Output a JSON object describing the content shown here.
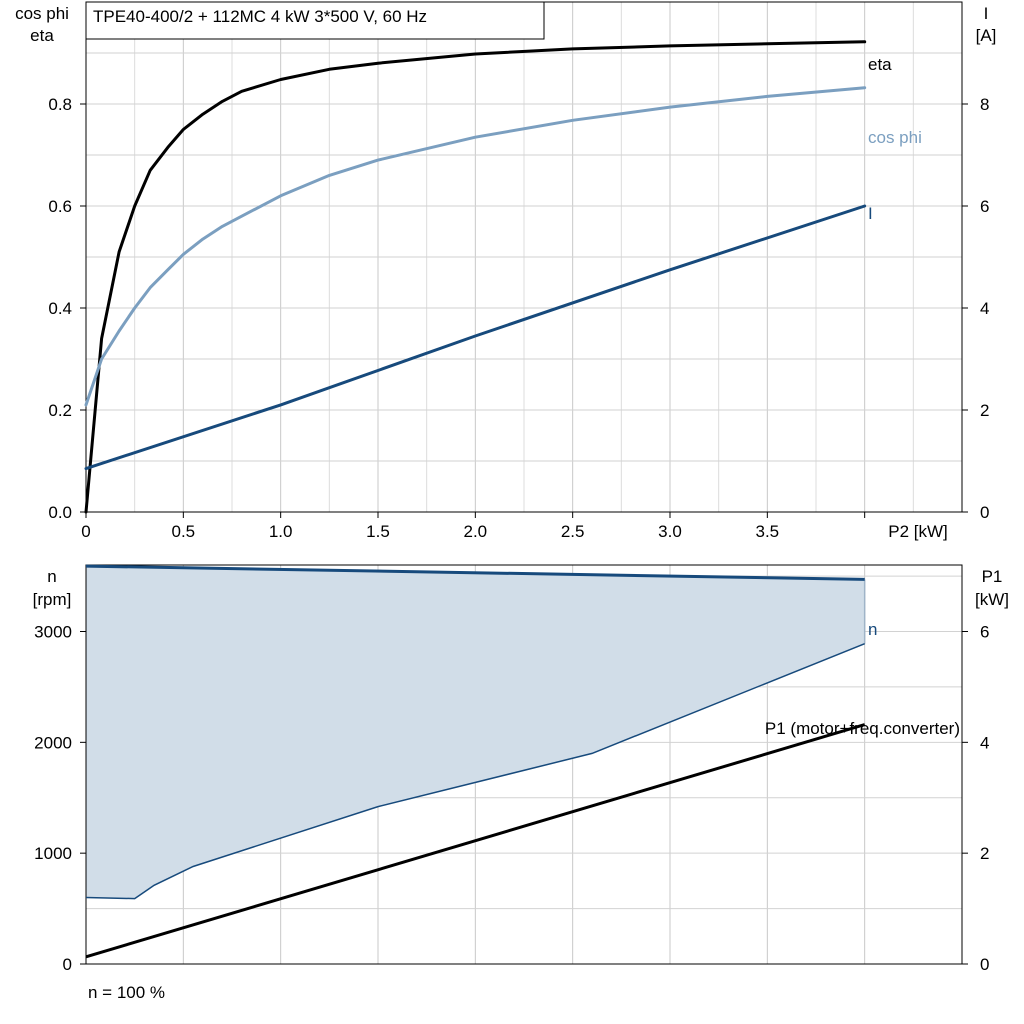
{
  "chart_data": [
    {
      "type": "line",
      "title": "TPE40-400/2 + 112MC   4 kW   3*500 V, 60 Hz",
      "xlabel": "P2 [kW]",
      "ylabel_left": [
        "cos phi",
        "eta"
      ],
      "ylabel_right": [
        "I",
        "[A]"
      ],
      "xlim": [
        0,
        4.5
      ],
      "ylim_left": [
        0,
        1.0
      ],
      "ylim_right": [
        0,
        10
      ],
      "x_ticks": [
        "0",
        "0.5",
        "1.0",
        "1.5",
        "2.0",
        "2.5",
        "3.0",
        "3.5"
      ],
      "y_ticks_left": [
        "0.0",
        "0.2",
        "0.4",
        "0.6",
        "0.8"
      ],
      "y_ticks_right": [
        "0",
        "2",
        "4",
        "6",
        "8"
      ],
      "grid": true,
      "series": [
        {
          "name": "eta",
          "axis": "left",
          "color": "#000000",
          "x": [
            0,
            0.08,
            0.17,
            0.25,
            0.33,
            0.42,
            0.5,
            0.6,
            0.7,
            0.8,
            1.0,
            1.25,
            1.5,
            2.0,
            2.5,
            3.0,
            3.5,
            4.0
          ],
          "y": [
            0,
            0.34,
            0.51,
            0.6,
            0.67,
            0.715,
            0.75,
            0.78,
            0.805,
            0.825,
            0.848,
            0.868,
            0.88,
            0.898,
            0.908,
            0.914,
            0.918,
            0.922
          ]
        },
        {
          "name": "cos phi",
          "axis": "left",
          "color": "#7b9fc0",
          "x": [
            0,
            0.08,
            0.17,
            0.25,
            0.33,
            0.42,
            0.5,
            0.6,
            0.7,
            0.8,
            1.0,
            1.25,
            1.5,
            2.0,
            2.5,
            3.0,
            3.5,
            4.0
          ],
          "y": [
            0.21,
            0.3,
            0.355,
            0.4,
            0.44,
            0.475,
            0.505,
            0.535,
            0.56,
            0.58,
            0.62,
            0.66,
            0.69,
            0.735,
            0.768,
            0.794,
            0.815,
            0.832
          ]
        },
        {
          "name": "I",
          "axis": "right",
          "color": "#174a7c",
          "x": [
            0,
            1.0,
            2.0,
            3.0,
            4.0
          ],
          "y": [
            0.85,
            2.1,
            3.45,
            4.75,
            6.0
          ]
        }
      ]
    },
    {
      "type": "area",
      "xlim": [
        0,
        4.5
      ],
      "ylabel_left": [
        "n",
        "[rpm]"
      ],
      "ylabel_right": [
        "P1",
        "[kW]"
      ],
      "ylim_left": [
        0,
        3600
      ],
      "ylim_right": [
        0,
        7.2
      ],
      "y_ticks_left": [
        "0",
        "1000",
        "2000",
        "3000"
      ],
      "y_ticks_right": [
        "0",
        "2",
        "4",
        "6"
      ],
      "grid": true,
      "footnote": "n = 100 %",
      "series": [
        {
          "name": "n",
          "axis": "left",
          "color": "#174a7c",
          "x": [
            0,
            4.0
          ],
          "y": [
            3590,
            3470
          ]
        },
        {
          "name": "",
          "role": "operating range lower limit",
          "axis": "left",
          "color": "#174a7c",
          "x": [
            0,
            0.25,
            0.35,
            0.55,
            1.5,
            2.6,
            4.0
          ],
          "y": [
            600,
            590,
            710,
            880,
            1420,
            1900,
            2890
          ]
        },
        {
          "name": "P1 (motor+freq.converter)",
          "axis": "right",
          "color": "#000000",
          "x": [
            0,
            4.0
          ],
          "y": [
            0.13,
            4.32
          ]
        }
      ],
      "fill_color": "#d1dde8"
    }
  ]
}
